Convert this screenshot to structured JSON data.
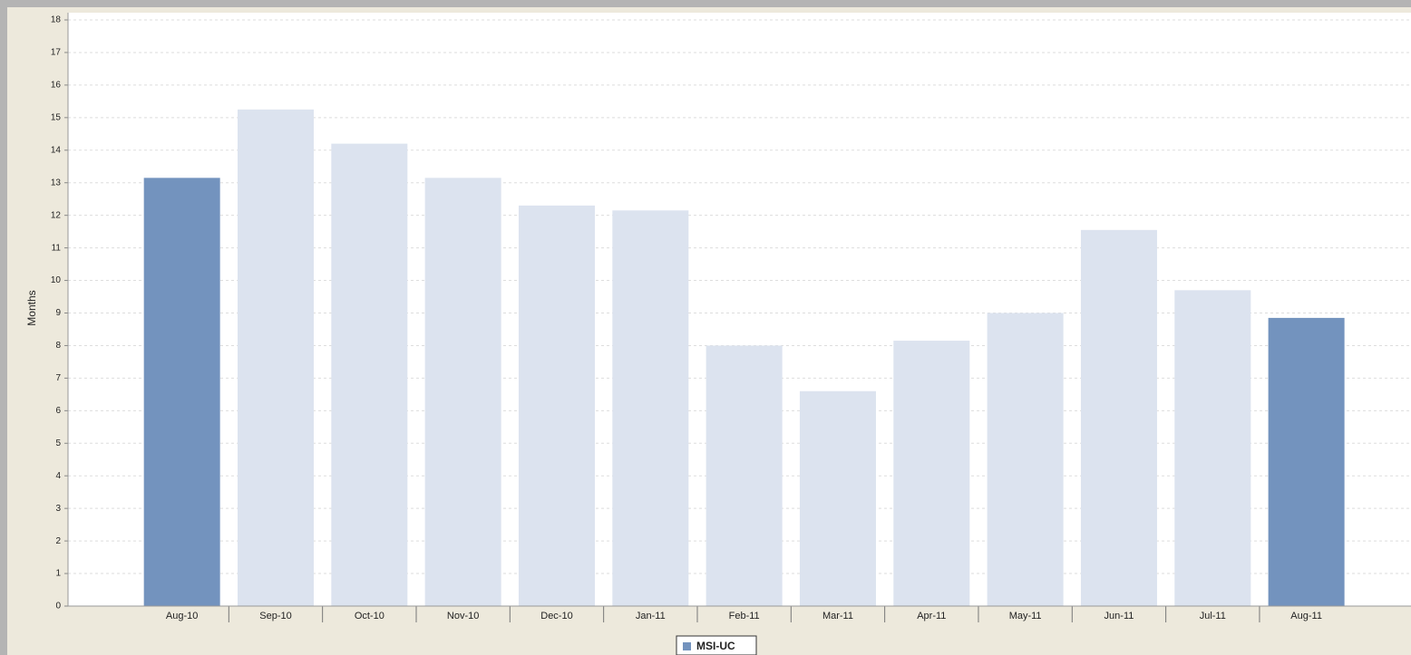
{
  "chart_data": {
    "type": "bar",
    "y_label": "Months",
    "categories": [
      "Aug-10",
      "Sep-10",
      "Oct-10",
      "Nov-10",
      "Dec-10",
      "Jan-11",
      "Feb-11",
      "Mar-11",
      "Apr-11",
      "May-11",
      "Jun-11",
      "Jul-11",
      "Aug-11"
    ],
    "series": [
      {
        "name": "MSI-UC",
        "color": "#7393be",
        "colors": [
          "#7393be",
          "#dce3ef",
          "#dce3ef",
          "#dce3ef",
          "#dce3ef",
          "#dce3ef",
          "#dce3ef",
          "#dce3ef",
          "#dce3ef",
          "#dce3ef",
          "#dce3ef",
          "#dce3ef",
          "#7393be"
        ],
        "values": [
          13.15,
          15.25,
          14.2,
          13.15,
          12.3,
          12.15,
          8.0,
          6.6,
          8.15,
          9.0,
          11.55,
          9.7,
          8.85
        ]
      }
    ],
    "ylim": [
      0,
      18
    ],
    "yticks": [
      0,
      1,
      2,
      3,
      4,
      5,
      6,
      7,
      8,
      9,
      10,
      11,
      12,
      13,
      14,
      15,
      16,
      17,
      18
    ],
    "grid": true
  }
}
